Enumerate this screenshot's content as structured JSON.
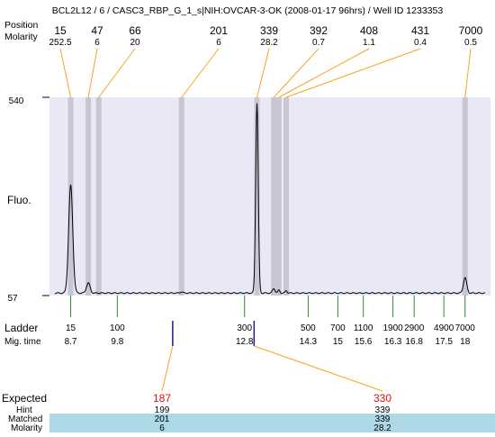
{
  "chart_data": {
    "type": "line",
    "title": "BCL2L12 / 6 / CASC3_RBP_G_1_s|NIH:OVCAR-3-OK (2008-01-17 96hrs) / Well ID 1233353",
    "ylabel": "Fluo.",
    "ylim": [
      57,
      540
    ],
    "ytick_labels": [
      "540",
      "57"
    ],
    "header_labels": {
      "size": "Position",
      "molarity": "Molarity"
    },
    "peaks": [
      {
        "size": "15",
        "molarity": "252.5",
        "x_bp": 15
      },
      {
        "size": "47",
        "molarity": "6",
        "x_bp": 47
      },
      {
        "size": "66",
        "molarity": "20",
        "x_bp": 66
      },
      {
        "size": "201",
        "molarity": "6",
        "x_bp": 201
      },
      {
        "size": "339",
        "molarity": "28.2",
        "x_bp": 339
      },
      {
        "size": "392",
        "molarity": "0.7",
        "x_bp": 392
      },
      {
        "size": "408",
        "molarity": "1.1",
        "x_bp": 408
      },
      {
        "size": "431",
        "molarity": "0.4",
        "x_bp": 431
      },
      {
        "size": "7000",
        "molarity": "0.5",
        "x_bp": 7000
      }
    ],
    "ladder": {
      "label": "Ladder",
      "mig_label": "Mig. time",
      "bands": [
        {
          "size": "15",
          "time": "8.7",
          "bp": 15
        },
        {
          "size": "100",
          "time": "9.8",
          "bp": 100
        },
        {
          "size": "300",
          "time": "12.8",
          "bp": 300
        },
        {
          "size": "500",
          "time": "14.3",
          "bp": 500
        },
        {
          "size": "700",
          "time": "15",
          "bp": 700
        },
        {
          "size": "1100",
          "time": "15.6",
          "bp": 1100
        },
        {
          "size": "1900",
          "time": "16.3",
          "bp": 1900
        },
        {
          "size": "2900",
          "time": "16.8",
          "bp": 2900
        },
        {
          "size": "4900",
          "time": "17.5",
          "bp": 4900
        },
        {
          "size": "7000",
          "time": "18",
          "bp": 7000
        }
      ]
    },
    "trace": {
      "baseline": 57,
      "peaks": [
        {
          "bp": 15,
          "height": 320,
          "width": 3.2
        },
        {
          "bp": 47,
          "height": 82,
          "width": 2.8
        },
        {
          "bp": 201,
          "height": 60,
          "width": 2.0
        },
        {
          "bp": 339,
          "height": 520,
          "width": 2.0
        },
        {
          "bp": 392,
          "height": 68,
          "width": 2.0
        },
        {
          "bp": 408,
          "height": 64,
          "width": 1.6
        },
        {
          "bp": 431,
          "height": 63,
          "width": 1.5
        },
        {
          "bp": 7000,
          "height": 95,
          "width": 2.6
        }
      ]
    },
    "expected": {
      "labels": {
        "expected": "Expected",
        "hint": "Hint",
        "matched": "Matched",
        "molarity": "Molarity"
      },
      "items": [
        {
          "expected": "187",
          "hint": "199",
          "matched": "201",
          "molarity": "6",
          "bp": 187
        },
        {
          "expected": "330",
          "hint": "339",
          "matched": "339",
          "molarity": "28.2",
          "bp": 330
        }
      ]
    },
    "colors": {
      "plot_bg": "#e8e8f7",
      "band": "#c6c6d4",
      "leader": "#f5a623",
      "ladder_line": "#2e8b2e",
      "expected_marker": "#1a1aa8",
      "expected_text": "#e01010",
      "matched_bg": "#add8e6",
      "trace": "#000000"
    }
  }
}
